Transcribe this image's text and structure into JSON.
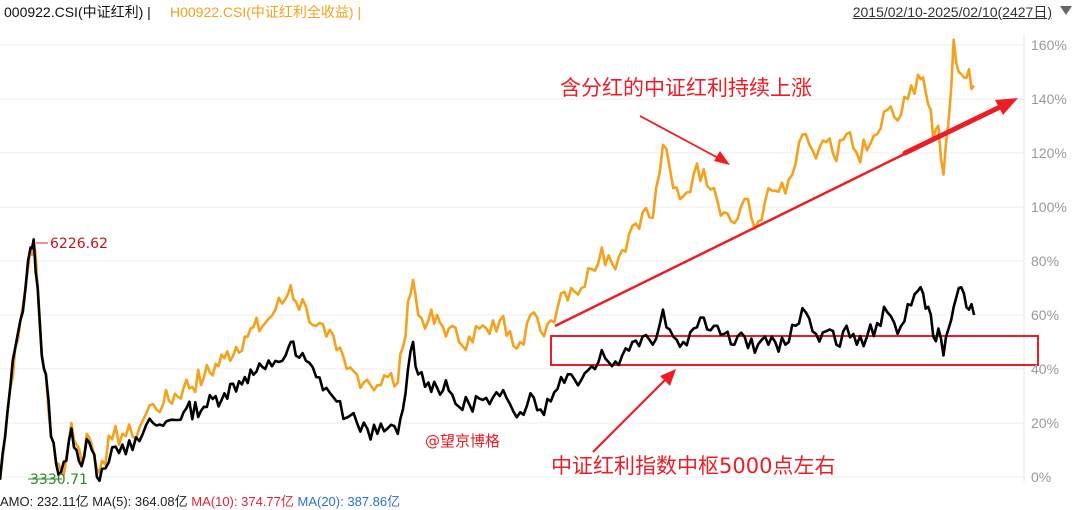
{
  "header": {
    "legend_a": "000922.CSI(中证红利) |",
    "legend_b": "H00922.CSI(中证红利全收益) |",
    "date_range": "2015/02/10-2025/02/10(2427日)",
    "menu_icon": "chevron-down-icon"
  },
  "footer": {
    "amo": "AMO: 232.11亿",
    "ma5": "MA(5): 364.08亿",
    "ma10": "MA(10): 374.77亿",
    "ma20": "MA(20): 387.86亿"
  },
  "colors": {
    "total_return": "#f5a11c",
    "price_index": "#000000",
    "annotation": "#ee1c24",
    "grid": "#eeeeee",
    "axis_text": "#999999",
    "watermark": "#ee1c24"
  },
  "chart_data": {
    "type": "line",
    "y_axis": {
      "position": "right",
      "unit": "%",
      "ticks": [
        "160%",
        "140%",
        "120%",
        "100%",
        "80%",
        "60%",
        "40%",
        "20%",
        "0%"
      ],
      "range": [
        0,
        160
      ]
    },
    "x_range": [
      "2015/02/10",
      "2025/02/10"
    ],
    "grid": true,
    "series": [
      {
        "id": "price",
        "name": "000922.CSI(中证红利)",
        "color": "#000000",
        "points": [
          [
            0,
            -1
          ],
          [
            0.005,
            15
          ],
          [
            0.01,
            33
          ],
          [
            0.015,
            48
          ],
          [
            0.02,
            58
          ],
          [
            0.025,
            70
          ],
          [
            0.03,
            85
          ],
          [
            0.033,
            88
          ],
          [
            0.037,
            70
          ],
          [
            0.041,
            45
          ],
          [
            0.045,
            38
          ],
          [
            0.05,
            15
          ],
          [
            0.055,
            5
          ],
          [
            0.06,
            2
          ],
          [
            0.065,
            6
          ],
          [
            0.07,
            18
          ],
          [
            0.075,
            10
          ],
          [
            0.08,
            4
          ],
          [
            0.085,
            14
          ],
          [
            0.09,
            10
          ],
          [
            0.095,
            0
          ],
          [
            0.1,
            3
          ],
          [
            0.11,
            11
          ],
          [
            0.12,
            12
          ],
          [
            0.13,
            10
          ],
          [
            0.14,
            16
          ],
          [
            0.15,
            20
          ],
          [
            0.16,
            19
          ],
          [
            0.18,
            24
          ],
          [
            0.2,
            26
          ],
          [
            0.22,
            31
          ],
          [
            0.24,
            37
          ],
          [
            0.26,
            40
          ],
          [
            0.27,
            43
          ],
          [
            0.28,
            45
          ],
          [
            0.285,
            50
          ],
          [
            0.29,
            45
          ],
          [
            0.3,
            43
          ],
          [
            0.31,
            37
          ],
          [
            0.32,
            33
          ],
          [
            0.33,
            28
          ],
          [
            0.34,
            22
          ],
          [
            0.35,
            20
          ],
          [
            0.36,
            18
          ],
          [
            0.37,
            16
          ],
          [
            0.38,
            18
          ],
          [
            0.39,
            16
          ],
          [
            0.395,
            25
          ],
          [
            0.4,
            40
          ],
          [
            0.405,
            50
          ],
          [
            0.41,
            38
          ],
          [
            0.42,
            35
          ],
          [
            0.44,
            32
          ],
          [
            0.45,
            26
          ],
          [
            0.46,
            27
          ],
          [
            0.47,
            29
          ],
          [
            0.48,
            27
          ],
          [
            0.49,
            30
          ],
          [
            0.5,
            27
          ],
          [
            0.51,
            24
          ],
          [
            0.52,
            31
          ],
          [
            0.53,
            25
          ],
          [
            0.54,
            28
          ],
          [
            0.55,
            37
          ],
          [
            0.56,
            38
          ],
          [
            0.57,
            36
          ],
          [
            0.58,
            41
          ],
          [
            0.59,
            47
          ],
          [
            0.6,
            41
          ],
          [
            0.61,
            45
          ],
          [
            0.62,
            50
          ],
          [
            0.63,
            52
          ],
          [
            0.64,
            49
          ],
          [
            0.65,
            62
          ],
          [
            0.66,
            52
          ],
          [
            0.67,
            50
          ],
          [
            0.68,
            55
          ],
          [
            0.69,
            59
          ],
          [
            0.7,
            56
          ],
          [
            0.71,
            53
          ],
          [
            0.72,
            49
          ],
          [
            0.73,
            52
          ],
          [
            0.74,
            46
          ],
          [
            0.75,
            52
          ],
          [
            0.76,
            50
          ],
          [
            0.77,
            49
          ],
          [
            0.78,
            56
          ],
          [
            0.79,
            61
          ],
          [
            0.8,
            53
          ],
          [
            0.81,
            54
          ],
          [
            0.82,
            49
          ],
          [
            0.83,
            56
          ],
          [
            0.84,
            49
          ],
          [
            0.85,
            52
          ],
          [
            0.86,
            57
          ],
          [
            0.87,
            61
          ],
          [
            0.88,
            53
          ],
          [
            0.89,
            64
          ],
          [
            0.9,
            69
          ],
          [
            0.905,
            68
          ],
          [
            0.91,
            63
          ],
          [
            0.915,
            52
          ],
          [
            0.92,
            55
          ],
          [
            0.925,
            45
          ],
          [
            0.93,
            55
          ],
          [
            0.935,
            63
          ],
          [
            0.94,
            70
          ],
          [
            0.945,
            68
          ],
          [
            0.95,
            62
          ],
          [
            0.955,
            60
          ]
        ]
      },
      {
        "id": "total_return",
        "name": "H00922.CSI(中证红利全收益)",
        "color": "#f5a11c",
        "points": [
          [
            0,
            -1
          ],
          [
            0.005,
            15
          ],
          [
            0.01,
            33
          ],
          [
            0.015,
            48
          ],
          [
            0.02,
            58
          ],
          [
            0.025,
            70
          ],
          [
            0.03,
            85
          ],
          [
            0.033,
            87
          ],
          [
            0.037,
            70
          ],
          [
            0.041,
            45
          ],
          [
            0.045,
            38
          ],
          [
            0.05,
            15
          ],
          [
            0.055,
            5
          ],
          [
            0.06,
            2
          ],
          [
            0.065,
            7
          ],
          [
            0.07,
            20
          ],
          [
            0.075,
            12
          ],
          [
            0.08,
            6
          ],
          [
            0.085,
            16
          ],
          [
            0.09,
            12
          ],
          [
            0.095,
            3
          ],
          [
            0.1,
            6
          ],
          [
            0.11,
            14
          ],
          [
            0.12,
            16
          ],
          [
            0.13,
            15
          ],
          [
            0.14,
            21
          ],
          [
            0.15,
            27
          ],
          [
            0.16,
            27
          ],
          [
            0.18,
            33
          ],
          [
            0.2,
            37
          ],
          [
            0.22,
            44
          ],
          [
            0.24,
            52
          ],
          [
            0.26,
            57
          ],
          [
            0.27,
            62
          ],
          [
            0.28,
            66
          ],
          [
            0.285,
            71
          ],
          [
            0.29,
            65
          ],
          [
            0.3,
            63
          ],
          [
            0.31,
            56
          ],
          [
            0.32,
            52
          ],
          [
            0.33,
            47
          ],
          [
            0.34,
            40
          ],
          [
            0.35,
            38
          ],
          [
            0.36,
            36
          ],
          [
            0.37,
            34
          ],
          [
            0.38,
            37
          ],
          [
            0.39,
            35
          ],
          [
            0.395,
            48
          ],
          [
            0.4,
            65
          ],
          [
            0.405,
            73
          ],
          [
            0.41,
            60
          ],
          [
            0.42,
            58
          ],
          [
            0.44,
            55
          ],
          [
            0.45,
            50
          ],
          [
            0.46,
            52
          ],
          [
            0.47,
            55
          ],
          [
            0.48,
            53
          ],
          [
            0.49,
            58
          ],
          [
            0.5,
            54
          ],
          [
            0.51,
            50
          ],
          [
            0.52,
            60
          ],
          [
            0.53,
            54
          ],
          [
            0.54,
            58
          ],
          [
            0.55,
            68
          ],
          [
            0.56,
            70
          ],
          [
            0.57,
            70
          ],
          [
            0.58,
            77
          ],
          [
            0.59,
            85
          ],
          [
            0.6,
            79
          ],
          [
            0.61,
            84
          ],
          [
            0.62,
            93
          ],
          [
            0.63,
            98
          ],
          [
            0.64,
            96
          ],
          [
            0.65,
            123
          ],
          [
            0.66,
            107
          ],
          [
            0.67,
            104
          ],
          [
            0.68,
            112
          ],
          [
            0.69,
            114
          ],
          [
            0.7,
            107
          ],
          [
            0.71,
            98
          ],
          [
            0.72,
            94
          ],
          [
            0.73,
            103
          ],
          [
            0.74,
            92
          ],
          [
            0.75,
            102
          ],
          [
            0.76,
            106
          ],
          [
            0.77,
            105
          ],
          [
            0.78,
            116
          ],
          [
            0.79,
            127
          ],
          [
            0.8,
            118
          ],
          [
            0.81,
            124
          ],
          [
            0.82,
            117
          ],
          [
            0.83,
            127
          ],
          [
            0.84,
            120
          ],
          [
            0.85,
            121
          ],
          [
            0.86,
            127
          ],
          [
            0.87,
            136
          ],
          [
            0.88,
            132
          ],
          [
            0.89,
            140
          ],
          [
            0.9,
            149
          ],
          [
            0.905,
            148
          ],
          [
            0.91,
            138
          ],
          [
            0.915,
            125
          ],
          [
            0.92,
            130
          ],
          [
            0.925,
            112
          ],
          [
            0.93,
            132
          ],
          [
            0.935,
            162
          ],
          [
            0.94,
            150
          ],
          [
            0.945,
            148
          ],
          [
            0.95,
            151
          ],
          [
            0.955,
            145
          ]
        ]
      }
    ],
    "annotations": {
      "max_label": "6226.62",
      "min_label": "3330.71",
      "arrow_text_top": "含分红的中证红利持续上涨",
      "arrow_text_bottom": "中证红利指数中枢5000点左右",
      "watermark": "@望京博格"
    }
  }
}
